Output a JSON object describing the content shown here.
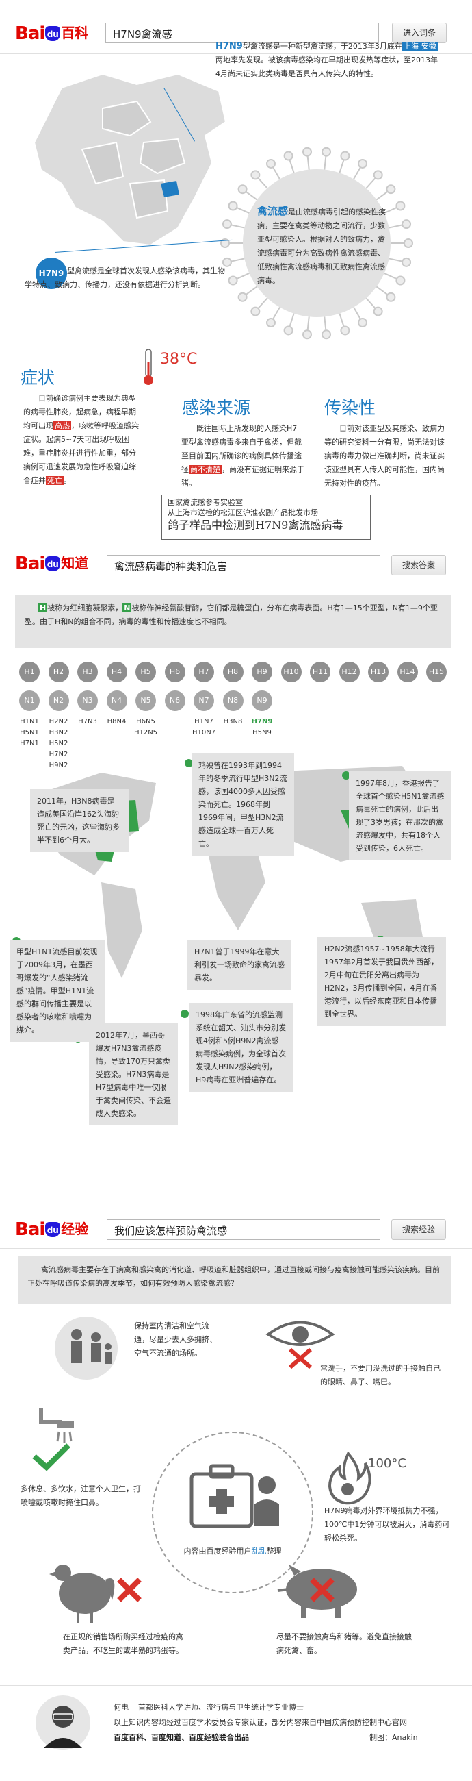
{
  "section1": {
    "logo_text": "Bai",
    "logo_paw": "du",
    "logo_suffix": "百科",
    "search_value": "H7N9禽流感",
    "button": "进入词条"
  },
  "intro": {
    "h7n9_label": "H7N9",
    "text_a": "型禽流感是一种新型禽流感，于2013年3月底在",
    "hl_shanghai": "上海",
    "hl_anhui": "安徽",
    "text_b": "两地率先发现。被该病毒感染均在早期出现发热等症状，至2013年4月尚未证实此类病毒是否具有人传染人的特性。",
    "avian_title": "禽流感",
    "avian_text": "是由流感病毒引起的感染性疾病，主要在禽类等动物之间流行，少数亚型可感染人。根据对人的致病力，禽流感病毒可分为高致病性禽流感病毒、低致病性禽流感病毒和无致病性禽流感病毒。",
    "badge": "H7N9",
    "badge_text": "型禽流感是全球首次发现人感染该病毒，其生物学特点、致病力、传播力，还没有依据进行分析判断。"
  },
  "symptoms": {
    "thermo_value": "38°C",
    "symptom_title": "症状",
    "symptom_text_a": "目前确诊病例主要表现为典型的病毒性肺炎，起病急，病程早期均可出现",
    "symptom_hl1": "高热",
    "symptom_text_b": "，咳嗽等呼吸道感染症状。起病5~7天可出现呼吸困难，重症肺炎并进行性加重，部分病例可迅速发展为急性呼吸窘迫综合症并",
    "symptom_hl2": "死亡",
    "symptom_text_c": "。",
    "source_title": "感染来源",
    "source_text_a": "既往国际上所发现的人感染H7亚型禽流感病毒多来自于禽类，但截至目前国内所确诊的病例具体传播途径",
    "source_hl": "尚不清楚",
    "source_text_b": "，尚没有证据证明来源于猪。",
    "spread_title": "传染性",
    "spread_text": "目前对该亚型及其感染、致病力等的研究资料十分有限，尚无法对该病毒的毒力做出准确判断，尚未证实该亚型具有人传人的可能性，国内尚无持对性的疫苗。",
    "news_line1": "国家禽流感参考实验室",
    "news_line2": "从上海市送检的松江区沪淮农副产品批发市场",
    "news_line3": "鸽子样品中检测到H7N9禽流感病毒"
  },
  "section2": {
    "logo_suffix": "知道",
    "search_value": "禽流感病毒的种类和危害",
    "button": "搜索答案"
  },
  "types": {
    "intro_h": "H",
    "intro_text_a": "被称为红细胞凝聚素，",
    "intro_n": "N",
    "intro_text_b": "被称作神经氨酸苷酶，它们都是糖蛋白，分布在病毒表面。H有1—15个亚型，N有1—9个亚型。由于H和N的组合不同，病毒的毒性和传播速度也不相同。",
    "h_labels": [
      "H1",
      "H2",
      "H3",
      "H4",
      "H5",
      "H6",
      "H7",
      "H8",
      "H9",
      "H10",
      "H11",
      "H12",
      "H13",
      "H14",
      "H15"
    ],
    "n_labels": [
      "N1",
      "N2",
      "N3",
      "N4",
      "N5",
      "N6",
      "N7",
      "N8",
      "N9"
    ],
    "n_lists": [
      [
        "H1N1",
        "H5N1",
        "H7N1"
      ],
      [
        "H2N2",
        "H3N2",
        "H5N2",
        "H7N2",
        "H9N2"
      ],
      [
        "H7N3"
      ],
      [
        "H8N4"
      ],
      [
        "H6N5",
        "H12N5"
      ],
      [],
      [
        "H1N7",
        "H10N7"
      ],
      [
        "H3N8"
      ],
      [
        "H7N9",
        "H5N9"
      ]
    ]
  },
  "map_notes": {
    "hk_1993": "鸡殃曾在1993年到1994年的冬季流行甲型H3N2流感，该国4000多人因受感染而死亡。1968年到1969年间，甲型H3N2流感造成全球一百万人死亡。",
    "us_2011": "2011年，H3N8病毒是造成美国沿岸162头海豹死亡的元凶，这些海豹多半不到6个月大。",
    "hk_1997": "1997年8月，香港报告了全球首个感染H5N1禽流感病毒死亡的病例，此后出现了3岁男孩；在那次的禽流感爆发中，共有18个人受到传染，6人死亡。",
    "h1n1_2009": "甲型H1N1流感目前发现于2009年3月，在墨西哥爆发的“人感染猪流感”疫情。甲型H1N1流感的群间传播主要是以感染者的咳嗽和喷嚏为媒介。",
    "h7n1_1999": "H7N1曾于1999年在意大利引发一场致命的家禽流感暴发。",
    "h2n2_1957": "H2N2流感1957~1958年大流行  1957年2月首发于我国贵州西部，2月中旬在贵阳分离出病毒为H2N2，3月传播到全国，4月在香港流行，以后经东南亚和日本传播到全世界。",
    "h7n3_2012": "2012年7月，墨西哥爆发H7N3禽流感疫情，导致170万只禽类受感染。H7N3病毒是H7型病毒中唯一仅限于禽类间传染、不会造成人类感染。",
    "gd_1998": "1998年广东省的流感监测系统在韶关、汕头市分别发现4例和5例H9N2禽流感病毒感染病例，为全球首次发现人H9N2感染病例，H9病毒在亚洲普遍存在。"
  },
  "section3": {
    "logo_suffix": "经验",
    "search_value": "我们应该怎样预防禽流感",
    "button": "搜索经验"
  },
  "prevention": {
    "intro": "禽流感病毒主要存在于病禽和感染禽的消化道、呼吸道和脏器组织中，通过直接或间接与疫禽接触可能感染该疾病。目前正处在呼吸道传染病的高发季节，如何有效预防人感染禽流感？",
    "tip1": "保持室内清洁和空气流通，尽量少去人多拥挤、空气不流通的场所。",
    "tip2": "常洗手，不要用没洗过的手接触自己的眼睛、鼻子、嘴巴。",
    "tip3": "多休息、多饮水，注意个人卫生，打喷嚏或咳嗽时掩住口鼻。",
    "temp": "100°C",
    "tip4": "H7N9病毒对外界环境抵抗力不强，100℃中1分钟可以被消灭，消毒药可轻松杀死。",
    "center_a": "内容由百度经验用户",
    "center_user": "乱乱",
    "center_b": "整理",
    "tip5": "在正规的销售场所购买经过检疫的禽类产品，不吃生的或半熟的鸡蛋等。",
    "tip6": "尽量不要接触禽鸟和猪等。避免直接接触病死禽、畜。"
  },
  "footer": {
    "author": "何电",
    "author_title": "首都医科大学讲师、流行病与卫生统计学专业博士",
    "line2": "以上知识内容均经过百度学术委员会专家认证，部分内容来自中国疾病预防控制中心官网",
    "line3": "百度百科、百度知道、百度经验联合出品",
    "credit": "制图：Anakin"
  },
  "colors": {
    "baidu_red": "#e10602",
    "baidu_blue": "#2319dc",
    "accent_blue": "#1f7cc2",
    "map_green": "#36a04a",
    "alert_red": "#d9332b"
  }
}
